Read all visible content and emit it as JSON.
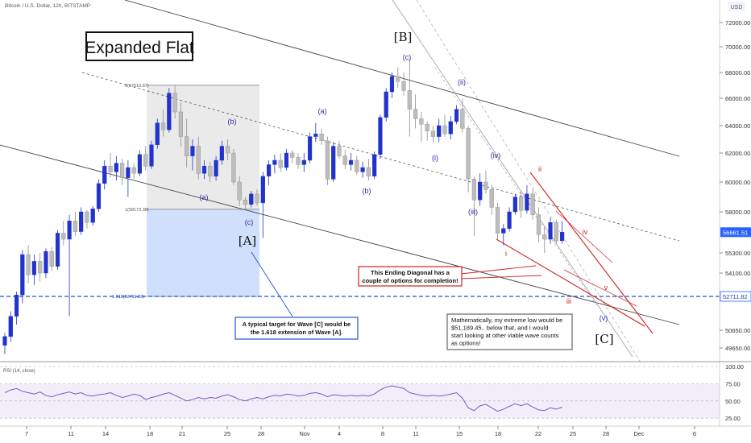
{
  "header": {
    "symbol": "Bitcoin / U.S. Dollar, 12h, BITSTAMP",
    "currency": "USD"
  },
  "chart_data": {
    "type": "candlestick",
    "title": "Expanded Flat",
    "price_axis": {
      "ticks": [
        "72000.00",
        "70000.00",
        "68000.00",
        "66000.00",
        "64000.00",
        "62000.00",
        "60000.00",
        "58000.00",
        "55300.00",
        "54100.00",
        "52711.82",
        "50650.00",
        "49650.00"
      ],
      "last_price": "56661.51",
      "level_label": "52711.82"
    },
    "date_axis": [
      "7",
      "11",
      "14",
      "18",
      "21",
      "25",
      "28",
      "Nov",
      "4",
      "8",
      "11",
      "15",
      "18",
      "22",
      "25",
      "28",
      "Dec",
      "6"
    ],
    "candles": [
      {
        "o": 49800,
        "h": 50500,
        "l": 49300,
        "c": 50300
      },
      {
        "o": 50300,
        "h": 51800,
        "l": 50000,
        "c": 51500
      },
      {
        "o": 51500,
        "h": 53000,
        "l": 51000,
        "c": 52800
      },
      {
        "o": 52800,
        "h": 55500,
        "l": 52300,
        "c": 55200
      },
      {
        "o": 55200,
        "h": 55800,
        "l": 53500,
        "c": 54000
      },
      {
        "o": 54000,
        "h": 55200,
        "l": 53400,
        "c": 54800
      },
      {
        "o": 54800,
        "h": 55300,
        "l": 53600,
        "c": 54100
      },
      {
        "o": 54100,
        "h": 55600,
        "l": 53800,
        "c": 55400
      },
      {
        "o": 55400,
        "h": 55700,
        "l": 54200,
        "c": 54500
      },
      {
        "o": 54500,
        "h": 56800,
        "l": 54300,
        "c": 56600
      },
      {
        "o": 56600,
        "h": 57400,
        "l": 55800,
        "c": 56200
      },
      {
        "o": 56200,
        "h": 57800,
        "l": 51500,
        "c": 57400
      },
      {
        "o": 57400,
        "h": 58000,
        "l": 56400,
        "c": 56700
      },
      {
        "o": 56700,
        "h": 58300,
        "l": 56500,
        "c": 58000
      },
      {
        "o": 58000,
        "h": 58100,
        "l": 56900,
        "c": 57300
      },
      {
        "o": 57300,
        "h": 58400,
        "l": 57100,
        "c": 58200
      },
      {
        "o": 58200,
        "h": 60200,
        "l": 58000,
        "c": 59900
      },
      {
        "o": 59900,
        "h": 61500,
        "l": 59500,
        "c": 61100
      },
      {
        "o": 61100,
        "h": 62000,
        "l": 60300,
        "c": 60700
      },
      {
        "o": 60700,
        "h": 61800,
        "l": 60100,
        "c": 61300
      },
      {
        "o": 61300,
        "h": 61600,
        "l": 59800,
        "c": 60300
      },
      {
        "o": 60300,
        "h": 61500,
        "l": 59000,
        "c": 61000
      },
      {
        "o": 61000,
        "h": 61300,
        "l": 60200,
        "c": 60600
      },
      {
        "o": 60600,
        "h": 62200,
        "l": 60400,
        "c": 61900
      },
      {
        "o": 61900,
        "h": 62500,
        "l": 60800,
        "c": 61100
      },
      {
        "o": 61100,
        "h": 62900,
        "l": 60900,
        "c": 62600
      },
      {
        "o": 62600,
        "h": 64500,
        "l": 62300,
        "c": 64200
      },
      {
        "o": 64200,
        "h": 65200,
        "l": 63200,
        "c": 63700
      },
      {
        "o": 63700,
        "h": 66800,
        "l": 63500,
        "c": 66400
      },
      {
        "o": 66400,
        "h": 67000,
        "l": 64500,
        "c": 65000
      },
      {
        "o": 65000,
        "h": 65700,
        "l": 62500,
        "c": 63200
      },
      {
        "o": 63200,
        "h": 64500,
        "l": 61000,
        "c": 61800
      },
      {
        "o": 61800,
        "h": 63000,
        "l": 60800,
        "c": 62500
      },
      {
        "o": 62500,
        "h": 63200,
        "l": 60200,
        "c": 60600
      },
      {
        "o": 60600,
        "h": 61500,
        "l": 60200,
        "c": 61100
      },
      {
        "o": 61100,
        "h": 61400,
        "l": 60000,
        "c": 60400
      },
      {
        "o": 60400,
        "h": 61800,
        "l": 60100,
        "c": 61500
      },
      {
        "o": 61500,
        "h": 62900,
        "l": 61200,
        "c": 62500
      },
      {
        "o": 62500,
        "h": 63000,
        "l": 61500,
        "c": 62000
      },
      {
        "o": 62000,
        "h": 62300,
        "l": 59800,
        "c": 60000
      },
      {
        "o": 60000,
        "h": 60400,
        "l": 58400,
        "c": 58800
      },
      {
        "o": 58800,
        "h": 59000,
        "l": 58200,
        "c": 58500
      },
      {
        "o": 58500,
        "h": 59400,
        "l": 58300,
        "c": 59200
      },
      {
        "o": 59200,
        "h": 59500,
        "l": 58400,
        "c": 58600
      },
      {
        "o": 58600,
        "h": 60700,
        "l": 56300,
        "c": 60400
      },
      {
        "o": 60400,
        "h": 61500,
        "l": 59800,
        "c": 61200
      },
      {
        "o": 61200,
        "h": 61900,
        "l": 60600,
        "c": 61500
      },
      {
        "o": 61500,
        "h": 62000,
        "l": 60700,
        "c": 61000
      },
      {
        "o": 61000,
        "h": 62300,
        "l": 60800,
        "c": 62000
      },
      {
        "o": 62000,
        "h": 62200,
        "l": 61300,
        "c": 61700
      },
      {
        "o": 61700,
        "h": 62000,
        "l": 60900,
        "c": 61200
      },
      {
        "o": 61200,
        "h": 62000,
        "l": 60700,
        "c": 61500
      },
      {
        "o": 61500,
        "h": 63500,
        "l": 61300,
        "c": 63200
      },
      {
        "o": 63200,
        "h": 64200,
        "l": 62800,
        "c": 63400
      },
      {
        "o": 63400,
        "h": 63800,
        "l": 62600,
        "c": 62900
      },
      {
        "o": 62900,
        "h": 63200,
        "l": 59800,
        "c": 60200
      },
      {
        "o": 60200,
        "h": 62800,
        "l": 60000,
        "c": 62500
      },
      {
        "o": 62500,
        "h": 62900,
        "l": 61600,
        "c": 61800
      },
      {
        "o": 61800,
        "h": 62200,
        "l": 60900,
        "c": 61200
      },
      {
        "o": 61200,
        "h": 62000,
        "l": 60800,
        "c": 61500
      },
      {
        "o": 61500,
        "h": 61800,
        "l": 60500,
        "c": 60700
      },
      {
        "o": 60700,
        "h": 61400,
        "l": 60300,
        "c": 61000
      },
      {
        "o": 61000,
        "h": 61600,
        "l": 60100,
        "c": 60400
      },
      {
        "o": 60400,
        "h": 62100,
        "l": 60200,
        "c": 61900
      },
      {
        "o": 61900,
        "h": 64800,
        "l": 61600,
        "c": 64600
      },
      {
        "o": 64600,
        "h": 66800,
        "l": 64300,
        "c": 66500
      },
      {
        "o": 66500,
        "h": 68000,
        "l": 66000,
        "c": 67700
      },
      {
        "o": 67700,
        "h": 68400,
        "l": 66800,
        "c": 67300
      },
      {
        "o": 67300,
        "h": 68000,
        "l": 66200,
        "c": 66600
      },
      {
        "o": 66600,
        "h": 69000,
        "l": 63200,
        "c": 65200
      },
      {
        "o": 65200,
        "h": 66300,
        "l": 63800,
        "c": 64500
      },
      {
        "o": 64500,
        "h": 65000,
        "l": 62800,
        "c": 64100
      },
      {
        "o": 64100,
        "h": 64300,
        "l": 62900,
        "c": 63600
      },
      {
        "o": 63600,
        "h": 64000,
        "l": 62800,
        "c": 63200
      },
      {
        "o": 63200,
        "h": 64500,
        "l": 62800,
        "c": 64000
      },
      {
        "o": 64000,
        "h": 64800,
        "l": 63200,
        "c": 63400
      },
      {
        "o": 63400,
        "h": 64700,
        "l": 63000,
        "c": 64300
      },
      {
        "o": 64300,
        "h": 65500,
        "l": 64100,
        "c": 65200
      },
      {
        "o": 65200,
        "h": 66000,
        "l": 63500,
        "c": 63800
      },
      {
        "o": 63800,
        "h": 64000,
        "l": 59300,
        "c": 60200
      },
      {
        "o": 60200,
        "h": 60400,
        "l": 56400,
        "c": 58800
      },
      {
        "o": 58800,
        "h": 60600,
        "l": 58400,
        "c": 60000
      },
      {
        "o": 60000,
        "h": 60800,
        "l": 59200,
        "c": 59500
      },
      {
        "o": 59500,
        "h": 59800,
        "l": 57800,
        "c": 58300
      },
      {
        "o": 58300,
        "h": 58600,
        "l": 56100,
        "c": 56600
      },
      {
        "o": 56600,
        "h": 57200,
        "l": 55800,
        "c": 56900
      },
      {
        "o": 56900,
        "h": 58300,
        "l": 56700,
        "c": 58000
      },
      {
        "o": 58000,
        "h": 59200,
        "l": 57800,
        "c": 59000
      },
      {
        "o": 59000,
        "h": 59400,
        "l": 57600,
        "c": 58100
      },
      {
        "o": 58100,
        "h": 59800,
        "l": 57900,
        "c": 59200
      },
      {
        "o": 59200,
        "h": 59500,
        "l": 57500,
        "c": 57800
      },
      {
        "o": 57800,
        "h": 58300,
        "l": 56000,
        "c": 56500
      },
      {
        "o": 56500,
        "h": 57000,
        "l": 55300,
        "c": 56200
      },
      {
        "o": 56200,
        "h": 57600,
        "l": 55900,
        "c": 57300
      },
      {
        "o": 57300,
        "h": 57500,
        "l": 55900,
        "c": 56100
      },
      {
        "o": 56100,
        "h": 57400,
        "l": 55900,
        "c": 56661
      }
    ],
    "fib_levels": [
      {
        "label": "0(67010.87)"
      },
      {
        "label": "1(58173.38)"
      },
      {
        "label": "1.618(52711.82)"
      }
    ],
    "wave_labels": [
      {
        "text": "(a)",
        "color": "#2d2d9c"
      },
      {
        "text": "(b)",
        "color": "#2d2d9c"
      },
      {
        "text": "(c)",
        "color": "#2d2d9c"
      },
      {
        "text": "[A]",
        "color": "#111111"
      },
      {
        "text": "(a)",
        "color": "#2d2d9c"
      },
      {
        "text": "(b)",
        "color": "#2d2d9c"
      },
      {
        "text": "(c)",
        "color": "#2d2d9c"
      },
      {
        "text": "[B]",
        "color": "#111111"
      },
      {
        "text": "(i)",
        "color": "#2d2d9c"
      },
      {
        "text": "(ii)",
        "color": "#2d2d9c"
      },
      {
        "text": "(iii)",
        "color": "#2d2d9c"
      },
      {
        "text": "(iv)",
        "color": "#2d2d9c"
      },
      {
        "text": "(v)",
        "color": "#2d2d9c"
      },
      {
        "text": "[C]",
        "color": "#111111"
      },
      {
        "text": "i",
        "color": "#d42020"
      },
      {
        "text": "ii",
        "color": "#d42020"
      },
      {
        "text": "iii",
        "color": "#d42020"
      },
      {
        "text": "iv",
        "color": "#d42020"
      },
      {
        "text": "v",
        "color": "#d42020"
      }
    ],
    "annotations": {
      "blue_note": [
        "A typical target for Wave [C] would be",
        "the 1.618 extension of Wave [A]."
      ],
      "red_note": [
        "This Ending Diagonal has a",
        "couple of options for completion!"
      ],
      "black_note": [
        "Mathematically, my extreme low would be",
        "$51,189.45.. below that, and I would",
        "start looking at other viable wave counts",
        "as options!"
      ]
    },
    "rsi": {
      "label": "RSI (14, close)",
      "ticks": [
        "100.00",
        "75.00",
        "50.00",
        "25.00"
      ],
      "values": [
        62,
        66,
        68,
        64,
        62,
        60,
        63,
        58,
        56,
        59,
        61,
        63,
        60,
        62,
        58,
        57,
        59,
        60,
        62,
        58,
        55,
        57,
        60,
        58,
        52,
        55,
        57,
        60,
        62,
        58,
        54,
        50,
        52,
        55,
        53,
        55,
        54,
        57,
        59,
        56,
        52,
        50,
        53,
        55,
        53,
        56,
        58,
        57,
        60,
        59,
        57,
        58,
        61,
        62,
        60,
        56,
        59,
        58,
        57,
        58,
        57,
        58,
        57,
        60,
        66,
        70,
        72,
        70,
        68,
        62,
        60,
        58,
        57,
        58,
        57,
        58,
        60,
        62,
        54,
        40,
        36,
        43,
        45,
        40,
        35,
        38,
        42,
        46,
        43,
        46,
        41,
        37,
        36,
        40,
        38,
        41
      ]
    },
    "colors": {
      "up": "#2233cc",
      "down": "#bdbdbd",
      "accent_red": "#d42020",
      "accent_blue": "#1f55cc"
    }
  }
}
